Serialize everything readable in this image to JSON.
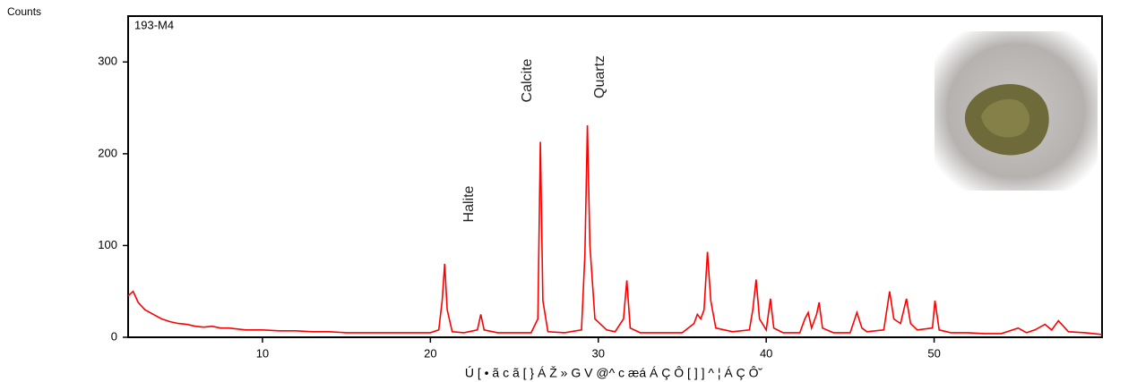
{
  "chart_data": {
    "type": "line",
    "y_label": "Counts",
    "sample_label": "193-M4",
    "x_label": "Ú [ • ã c ã [ } Á Ž » G V @^ c æá Á Ç Ô [ ] ] ^ ¦ Á Ç Ô˘",
    "annotations": [
      "Halite",
      "Calcite",
      "Quartz"
    ],
    "x": [
      2,
      2.3,
      2.6,
      3,
      3.5,
      4,
      4.5,
      5,
      5.5,
      6,
      6.5,
      7,
      7.5,
      8,
      9,
      10,
      11,
      12,
      13,
      14,
      15,
      16,
      17,
      18,
      19,
      20,
      20.5,
      20.7,
      20.85,
      21,
      21.3,
      22,
      22.8,
      23,
      23.2,
      24,
      25,
      26,
      26.4,
      26.55,
      26.7,
      27,
      28,
      29,
      29.2,
      29.35,
      29.5,
      29.8,
      30.5,
      31,
      31.5,
      31.7,
      31.9,
      32.5,
      33,
      34,
      35,
      35.7,
      35.9,
      36.1,
      36.3,
      36.5,
      36.7,
      37,
      38,
      39,
      39.2,
      39.4,
      39.6,
      40,
      40.25,
      40.45,
      41,
      42,
      42.3,
      42.5,
      42.7,
      43,
      43.15,
      43.35,
      44,
      45,
      45.4,
      45.7,
      46,
      47,
      47.35,
      47.6,
      48,
      48.35,
      48.6,
      49,
      49.9,
      50.05,
      50.3,
      51,
      52,
      53,
      54,
      55,
      55.5,
      56,
      56.6,
      57,
      57.4,
      57.7,
      58,
      59,
      60
    ],
    "series": [
      {
        "color": "#ff0000",
        "values": [
          45,
          50,
          38,
          30,
          25,
          20,
          17,
          15,
          14,
          12,
          11,
          12,
          10,
          10,
          8,
          8,
          7,
          7,
          6,
          6,
          5,
          5,
          5,
          5,
          5,
          5,
          8,
          40,
          80,
          30,
          6,
          5,
          8,
          25,
          8,
          5,
          5,
          5,
          20,
          213,
          40,
          6,
          5,
          8,
          90,
          231,
          100,
          20,
          8,
          6,
          20,
          62,
          10,
          5,
          5,
          5,
          5,
          15,
          25,
          20,
          30,
          93,
          40,
          10,
          6,
          8,
          30,
          63,
          20,
          8,
          42,
          10,
          5,
          5,
          20,
          27,
          10,
          25,
          38,
          10,
          5,
          5,
          27,
          10,
          6,
          8,
          50,
          20,
          15,
          42,
          15,
          8,
          10,
          40,
          8,
          5,
          5,
          4,
          4,
          10,
          5,
          8,
          14,
          8,
          18,
          12,
          6,
          5,
          3
        ]
      }
    ],
    "xlim": [
      2,
      60
    ],
    "ylim": [
      0,
      350
    ],
    "xticks": [
      10,
      20,
      30,
      40,
      50
    ],
    "yticks": [
      0,
      100,
      200,
      300
    ]
  }
}
